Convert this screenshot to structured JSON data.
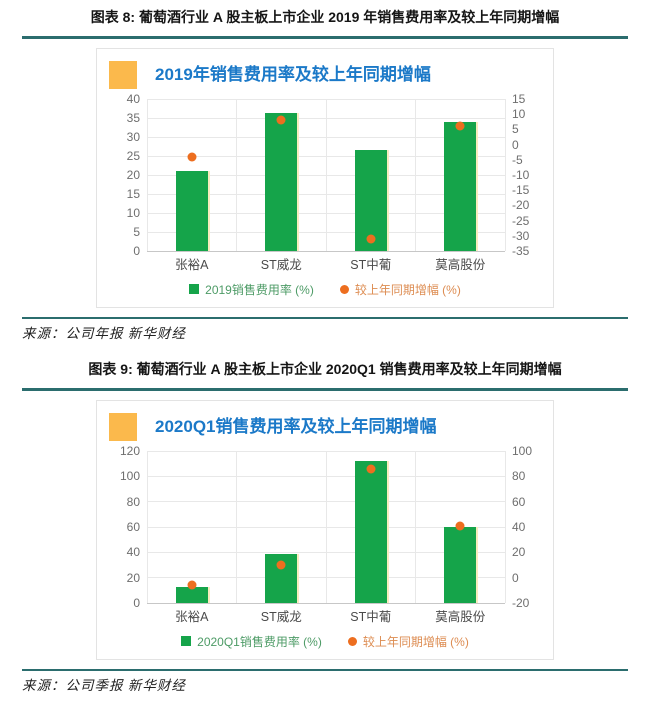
{
  "sections": [
    {
      "caption": "图表 8: 葡萄酒行业 A 股主板上市企业 2019 年销售费用率及较上年同期增幅",
      "source": "来源：公司年报 新华财经"
    },
    {
      "caption": "图表 9: 葡萄酒行业 A 股主板上市企业 2020Q1 销售费用率及较上年同期增幅",
      "source": "来源：公司季报 新华财经"
    }
  ],
  "colors": {
    "divider_teal": "#2B6D6E",
    "header_marker_orange": "#FBB94C",
    "chart_title_blue": "#1B79C8",
    "bar_green": "#15A44A",
    "dot_orange": "#ED6E1F",
    "bar_edge_yellow": "#F8ECBE"
  },
  "chart_data": [
    {
      "type": "bar",
      "title": "2019年销售费用率及较上年同期增幅",
      "categories": [
        "张裕A",
        "ST威龙",
        "ST中葡",
        "莫高股份"
      ],
      "series": [
        {
          "name": "2019销售费用率 (%)",
          "kind": "bar",
          "axis": "left",
          "color": "#15A44A",
          "text_color": "#4D9B66",
          "values": [
            21,
            36.4,
            26.5,
            34
          ]
        },
        {
          "name": "较上年同期增幅 (%)",
          "kind": "scatter",
          "axis": "right",
          "color": "#ED6E1F",
          "text_color": "#DD8C51",
          "values": [
            -4,
            8,
            -31,
            6
          ]
        }
      ],
      "left_axis": {
        "min": 0,
        "max": 40,
        "step": 5,
        "ticks": [
          40,
          35,
          30,
          25,
          20,
          15,
          10,
          5,
          0
        ]
      },
      "right_axis": {
        "min": -35,
        "max": 15,
        "step": 5,
        "ticks": [
          15,
          10,
          5,
          0,
          -5,
          -10,
          -15,
          -20,
          -25,
          -30,
          -35
        ]
      },
      "grid": true,
      "legend_position": "bottom",
      "xlabel": "",
      "ylabel": ""
    },
    {
      "type": "bar",
      "title": "2020Q1销售费用率及较上年同期增幅",
      "categories": [
        "张裕A",
        "ST威龙",
        "ST中葡",
        "莫高股份"
      ],
      "series": [
        {
          "name": "2020Q1销售费用率 (%)",
          "kind": "bar",
          "axis": "left",
          "color": "#15A44A",
          "text_color": "#4D9B66",
          "values": [
            12.5,
            39,
            112,
            60
          ]
        },
        {
          "name": "较上年同期增幅 (%)",
          "kind": "scatter",
          "axis": "right",
          "color": "#ED6E1F",
          "text_color": "#DD8C51",
          "values": [
            -6,
            10,
            86,
            41
          ]
        }
      ],
      "left_axis": {
        "min": 0,
        "max": 120,
        "step": 20,
        "ticks": [
          120,
          100,
          80,
          60,
          40,
          20,
          0
        ]
      },
      "right_axis": {
        "min": -20,
        "max": 100,
        "step": 20,
        "ticks": [
          100,
          80,
          60,
          40,
          20,
          0,
          -20
        ]
      },
      "grid": true,
      "legend_position": "bottom",
      "xlabel": "",
      "ylabel": ""
    }
  ]
}
